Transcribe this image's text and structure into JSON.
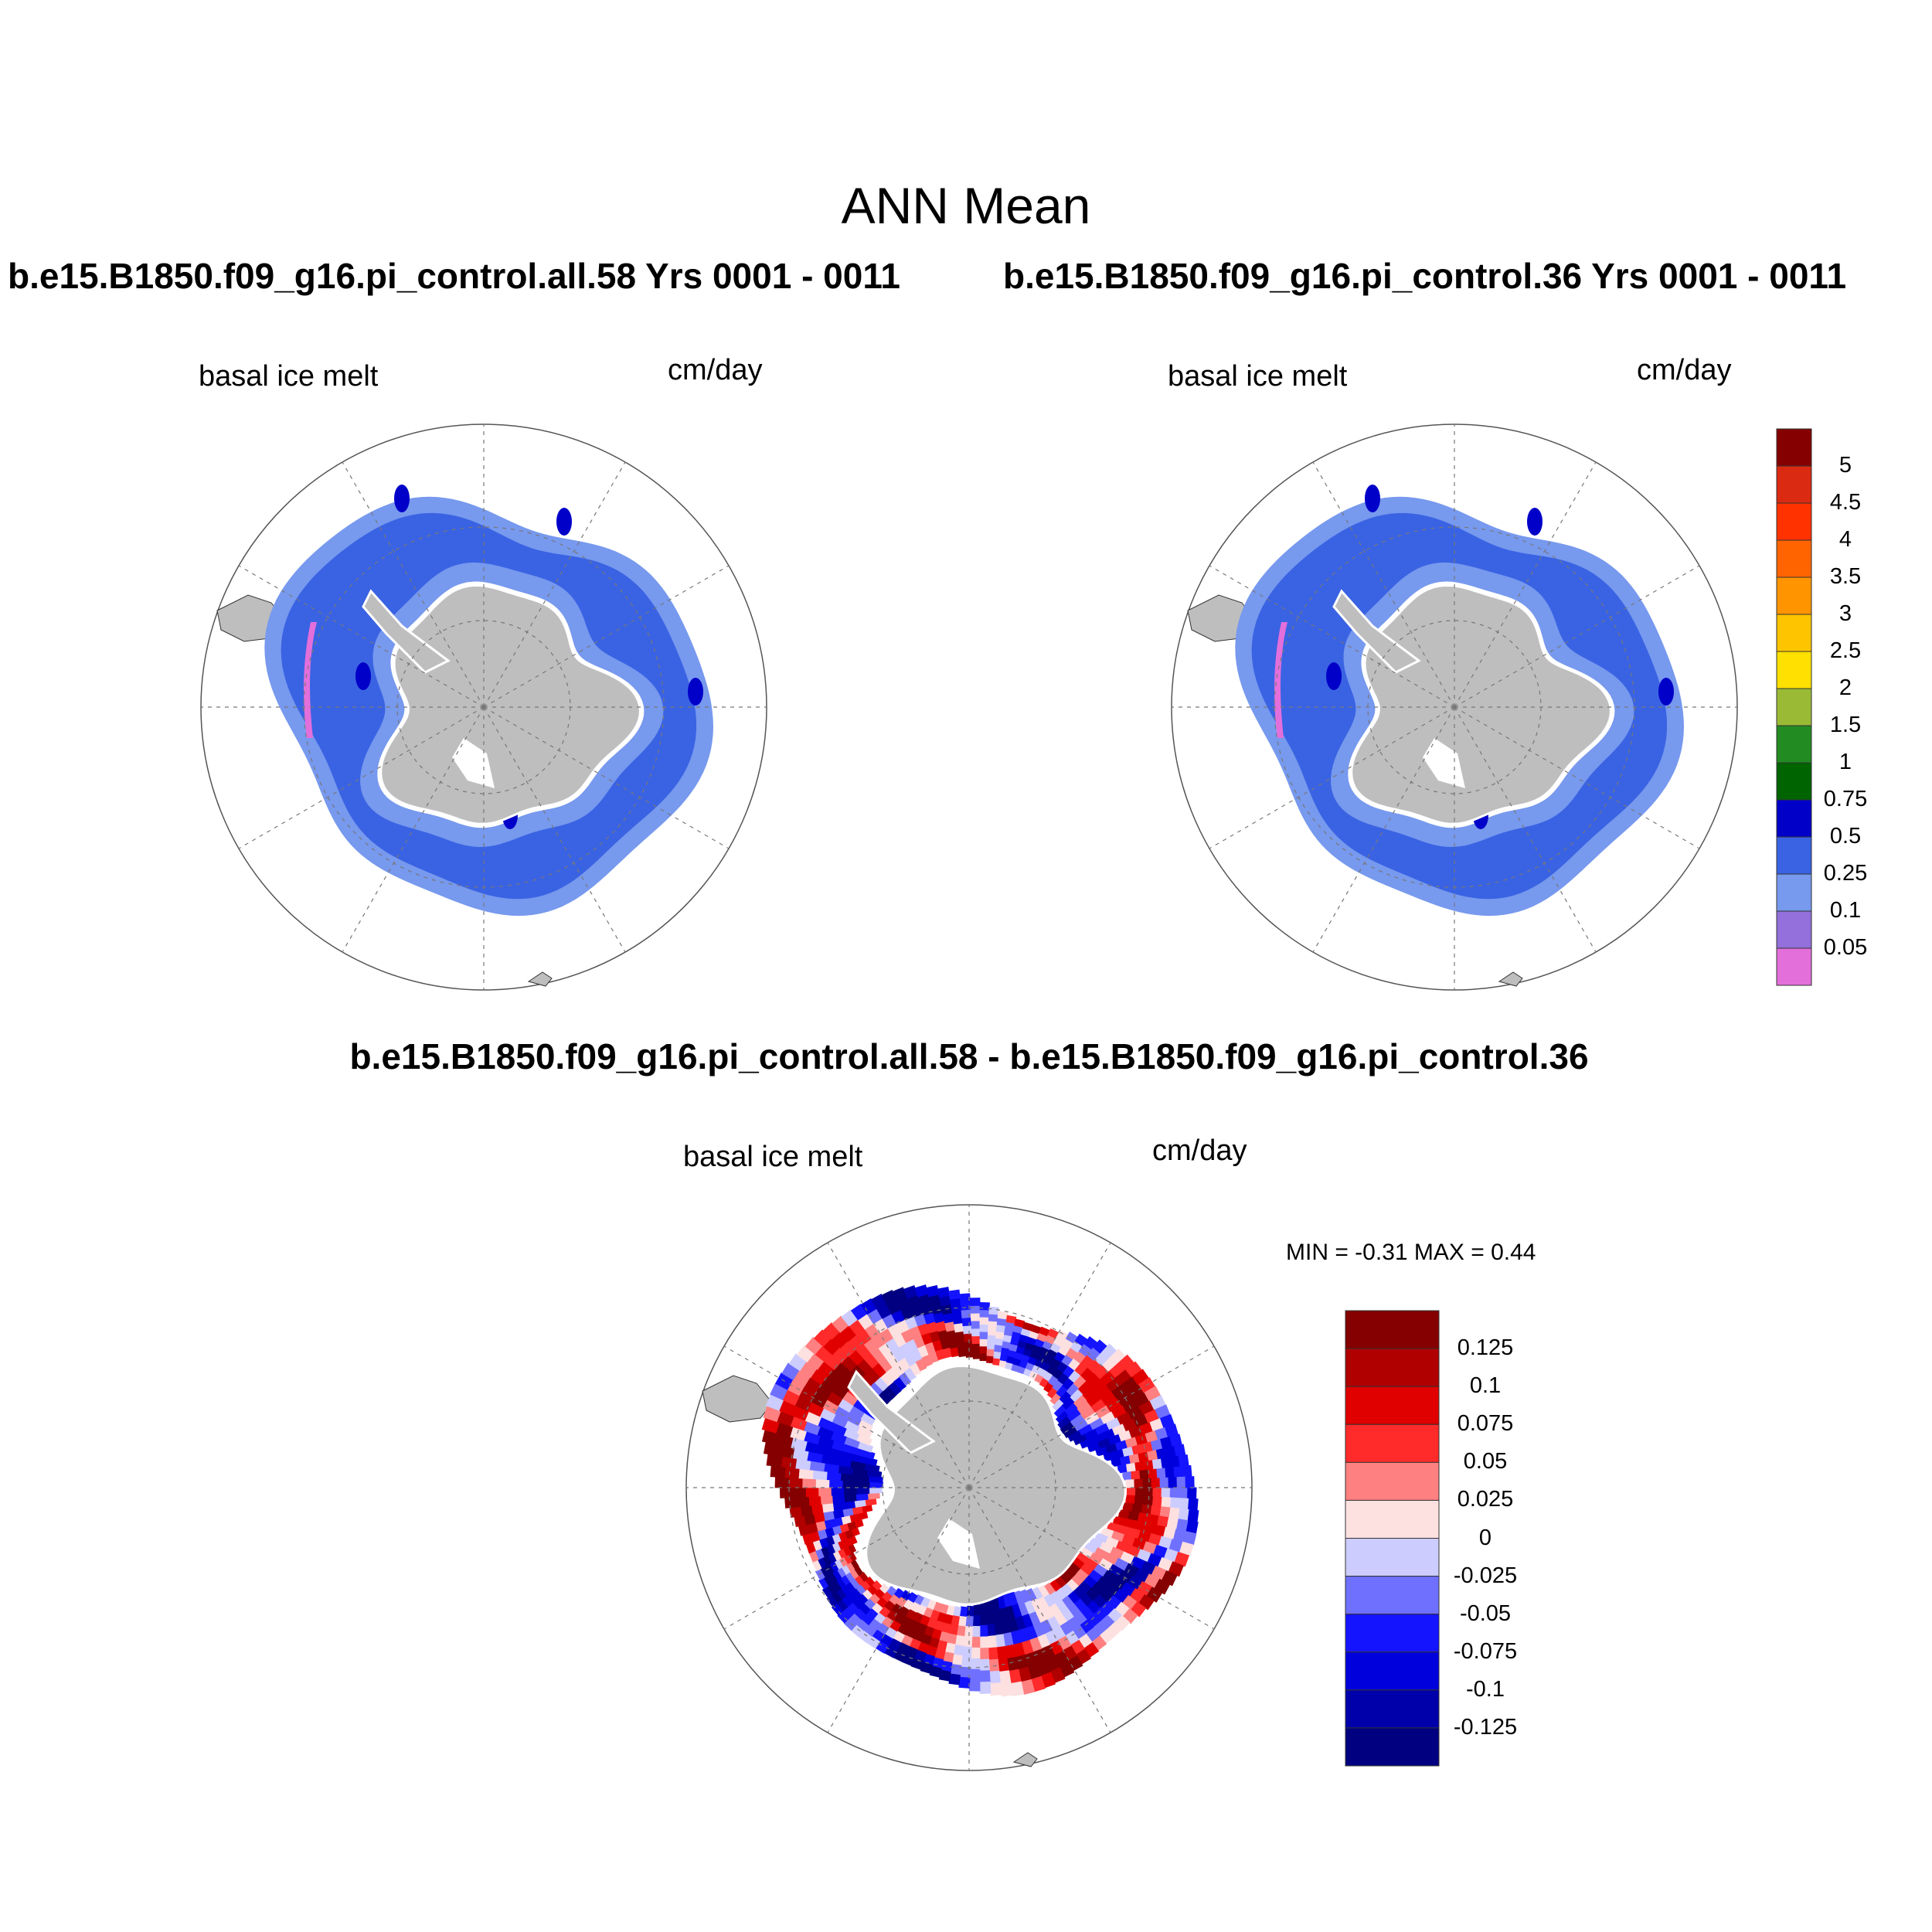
{
  "title": "ANN Mean",
  "panels": [
    {
      "subtitle": "b.e15.B1850.f09_g16.pi_control.all.58  Yrs 0001 - 0011",
      "left_label": "basal ice melt",
      "right_label": "cm/day"
    },
    {
      "subtitle": "b.e15.B1850.f09_g16.pi_control.36  Yrs 0001 - 0011",
      "left_label": "basal ice melt",
      "right_label": "cm/day"
    },
    {
      "subtitle": "b.e15.B1850.f09_g16.pi_control.all.58 - b.e15.B1850.f09_g16.pi_control.36",
      "left_label": "basal ice melt",
      "right_label": "cm/day",
      "minmax": "MIN =  -0.31 MAX =   0.44"
    }
  ],
  "chart_data": [
    {
      "type": "heatmap",
      "title": "basal ice melt",
      "units": "cm/day",
      "projection": "south polar stereographic",
      "colorbar": {
        "levels": [
          "0.05",
          "0.1",
          "0.25",
          "0.5",
          "0.75",
          "1",
          "1.5",
          "2",
          "2.5",
          "3",
          "3.5",
          "4",
          "4.5",
          "5"
        ],
        "colors": [
          "#e36fdb",
          "#9370db",
          "#7799ee",
          "#3a63e3",
          "#0000c8",
          "#006400",
          "#228b22",
          "#9aba36",
          "#ffe000",
          "#ffc400",
          "#ff9400",
          "#ff6400",
          "#ff3200",
          "#da2a12",
          "#850000"
        ]
      }
    },
    {
      "type": "heatmap",
      "title": "basal ice melt (difference)",
      "units": "cm/day",
      "min": -0.31,
      "max": 0.44,
      "colorbar": {
        "levels": [
          "-0.125",
          "-0.1",
          "-0.075",
          "-0.05",
          "-0.025",
          "0",
          "0.025",
          "0.05",
          "0.075",
          "0.1",
          "0.125"
        ],
        "colors": [
          "#000080",
          "#0000aa",
          "#0000dd",
          "#1414ff",
          "#7070ff",
          "#ccccff",
          "#fde0e0",
          "#ff8080",
          "#ff2a2a",
          "#e00000",
          "#b00000",
          "#850000"
        ]
      }
    }
  ]
}
